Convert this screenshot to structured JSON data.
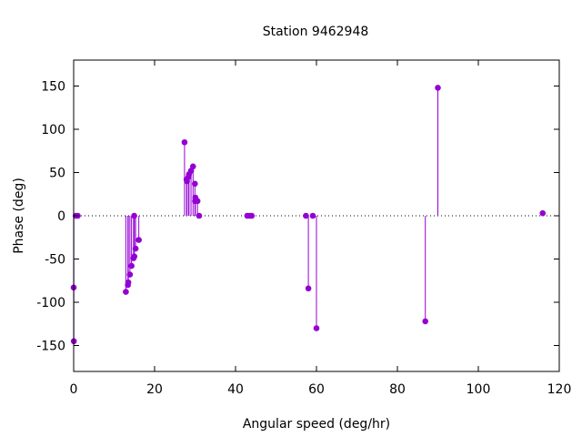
{
  "chart_data": {
    "type": "stem",
    "title": "Station 9462948",
    "xlabel": "Angular speed (deg/hr)",
    "ylabel": "Phase (deg)",
    "xlim": [
      0,
      120
    ],
    "ylim": [
      -180,
      180
    ],
    "xticks": [
      0,
      20,
      40,
      60,
      80,
      100,
      120
    ],
    "yticks": [
      -150,
      -100,
      -50,
      0,
      50,
      100,
      150
    ],
    "zero_line": "dotted",
    "grid": false,
    "color": "#9400d3",
    "series": [
      {
        "points": [
          {
            "x": 0.0,
            "y": -83
          },
          {
            "x": 0.04,
            "y": -145
          },
          {
            "x": 0.5,
            "y": 0
          },
          {
            "x": 1.0,
            "y": 0
          },
          {
            "x": 12.9,
            "y": -88
          },
          {
            "x": 13.4,
            "y": -80
          },
          {
            "x": 13.5,
            "y": -77
          },
          {
            "x": 13.9,
            "y": -68
          },
          {
            "x": 14.3,
            "y": -58
          },
          {
            "x": 14.8,
            "y": -49
          },
          {
            "x": 14.96,
            "y": 0
          },
          {
            "x": 15.0,
            "y": -47
          },
          {
            "x": 15.3,
            "y": -38
          },
          {
            "x": 16.1,
            "y": -28
          },
          {
            "x": 27.4,
            "y": 85
          },
          {
            "x": 27.9,
            "y": 42
          },
          {
            "x": 28.0,
            "y": 40
          },
          {
            "x": 28.4,
            "y": 45
          },
          {
            "x": 28.5,
            "y": 48
          },
          {
            "x": 29.0,
            "y": 52
          },
          {
            "x": 29.5,
            "y": 57
          },
          {
            "x": 29.96,
            "y": 37
          },
          {
            "x": 30.0,
            "y": 17
          },
          {
            "x": 30.08,
            "y": 21
          },
          {
            "x": 30.6,
            "y": 17
          },
          {
            "x": 31.0,
            "y": 0
          },
          {
            "x": 42.9,
            "y": 0
          },
          {
            "x": 43.5,
            "y": 0
          },
          {
            "x": 44.0,
            "y": 0
          },
          {
            "x": 57.4,
            "y": 0
          },
          {
            "x": 58.0,
            "y": -84
          },
          {
            "x": 59.1,
            "y": 0
          },
          {
            "x": 60.0,
            "y": -130
          },
          {
            "x": 86.9,
            "y": -122
          },
          {
            "x": 90.0,
            "y": 148
          },
          {
            "x": 115.9,
            "y": 3
          }
        ]
      }
    ]
  }
}
